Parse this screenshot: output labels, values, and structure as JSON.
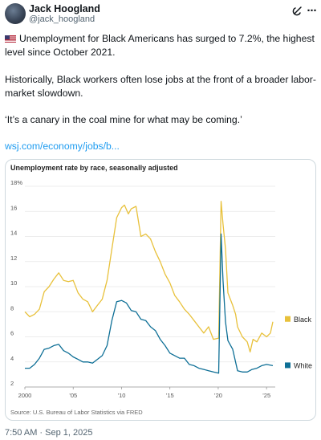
{
  "author": {
    "name": "Jack Hoogland",
    "handle": "@jack_hoogland"
  },
  "tweet": {
    "flag_icon": "us-flag-icon",
    "paragraph1": "Unemployment for Black Americans has surged to 7.2%, the highest level since October 2021.",
    "paragraph2": "Historically, Black workers often lose jobs at the front of a broader labor-market slowdown.",
    "paragraph3": "‘It’s a canary in the coal mine for what may be coming.’",
    "link": "wsj.com/economy/jobs/b..."
  },
  "timestamp": "7:50 AM · Sep 1, 2025",
  "colors": {
    "black_series": "#e8c13b",
    "white_series": "#0e6f96",
    "link": "#1d9bf0"
  },
  "chart_data": {
    "type": "line",
    "title": "Unemployment rate by race, seasonally adjusted",
    "source": "Source: U.S. Bureau of Labor Statistics via FRED",
    "x_ticks": [
      "2000",
      "’05",
      "’10",
      "’15",
      "’20",
      "’25"
    ],
    "x_tick_values": [
      2000,
      2005,
      2010,
      2015,
      2020,
      2025
    ],
    "y_ticks": [
      "18%",
      "16",
      "14",
      "12",
      "10",
      "8",
      "6",
      "4",
      "2"
    ],
    "y_tick_values": [
      18,
      16,
      14,
      12,
      10,
      8,
      6,
      4,
      2
    ],
    "xlim": [
      2000,
      2025.9
    ],
    "ylim": [
      2,
      18
    ],
    "grid": "horizontal",
    "legend": "right",
    "series": [
      {
        "name": "Black",
        "color": "#e8c13b",
        "points": [
          [
            2000,
            8.0
          ],
          [
            2000.5,
            7.6
          ],
          [
            2001,
            7.8
          ],
          [
            2001.5,
            8.2
          ],
          [
            2002,
            9.6
          ],
          [
            2002.5,
            10.0
          ],
          [
            2003,
            10.6
          ],
          [
            2003.5,
            11.1
          ],
          [
            2004,
            10.5
          ],
          [
            2004.5,
            10.4
          ],
          [
            2005,
            10.5
          ],
          [
            2005.5,
            9.5
          ],
          [
            2006,
            9.0
          ],
          [
            2006.5,
            8.8
          ],
          [
            2007,
            8.0
          ],
          [
            2007.5,
            8.5
          ],
          [
            2008,
            9.0
          ],
          [
            2008.5,
            10.5
          ],
          [
            2009,
            13.0
          ],
          [
            2009.5,
            15.5
          ],
          [
            2010,
            16.3
          ],
          [
            2010.3,
            16.5
          ],
          [
            2010.7,
            15.8
          ],
          [
            2011,
            16.2
          ],
          [
            2011.5,
            16.4
          ],
          [
            2012,
            14.0
          ],
          [
            2012.5,
            14.2
          ],
          [
            2013,
            13.8
          ],
          [
            2013.5,
            12.8
          ],
          [
            2014,
            12.0
          ],
          [
            2014.5,
            11.0
          ],
          [
            2015,
            10.3
          ],
          [
            2015.5,
            9.3
          ],
          [
            2016,
            8.8
          ],
          [
            2016.5,
            8.2
          ],
          [
            2017,
            7.8
          ],
          [
            2017.5,
            7.3
          ],
          [
            2018,
            6.8
          ],
          [
            2018.5,
            6.3
          ],
          [
            2019,
            6.8
          ],
          [
            2019.5,
            5.8
          ],
          [
            2020.05,
            5.9
          ],
          [
            2020.3,
            16.8
          ],
          [
            2020.5,
            15.0
          ],
          [
            2020.75,
            13.0
          ],
          [
            2021,
            9.5
          ],
          [
            2021.5,
            8.5
          ],
          [
            2021.8,
            7.8
          ],
          [
            2022,
            6.8
          ],
          [
            2022.5,
            6.0
          ],
          [
            2023,
            5.6
          ],
          [
            2023.3,
            4.8
          ],
          [
            2023.6,
            5.8
          ],
          [
            2024,
            5.6
          ],
          [
            2024.5,
            6.3
          ],
          [
            2025,
            6.0
          ],
          [
            2025.4,
            6.3
          ],
          [
            2025.65,
            7.2
          ]
        ]
      },
      {
        "name": "White",
        "color": "#0e6f96",
        "points": [
          [
            2000,
            3.5
          ],
          [
            2000.5,
            3.5
          ],
          [
            2001,
            3.8
          ],
          [
            2001.5,
            4.3
          ],
          [
            2002,
            5.0
          ],
          [
            2002.5,
            5.1
          ],
          [
            2003,
            5.3
          ],
          [
            2003.5,
            5.4
          ],
          [
            2004,
            4.9
          ],
          [
            2004.5,
            4.7
          ],
          [
            2005,
            4.4
          ],
          [
            2005.5,
            4.2
          ],
          [
            2006,
            4.0
          ],
          [
            2006.5,
            4.0
          ],
          [
            2007,
            3.9
          ],
          [
            2007.5,
            4.2
          ],
          [
            2008,
            4.5
          ],
          [
            2008.5,
            5.3
          ],
          [
            2009,
            7.3
          ],
          [
            2009.5,
            8.8
          ],
          [
            2010,
            8.9
          ],
          [
            2010.5,
            8.7
          ],
          [
            2011,
            8.1
          ],
          [
            2011.5,
            8.0
          ],
          [
            2012,
            7.4
          ],
          [
            2012.5,
            7.3
          ],
          [
            2013,
            6.8
          ],
          [
            2013.5,
            6.5
          ],
          [
            2014,
            5.8
          ],
          [
            2014.5,
            5.3
          ],
          [
            2015,
            4.7
          ],
          [
            2015.5,
            4.5
          ],
          [
            2016,
            4.3
          ],
          [
            2016.5,
            4.3
          ],
          [
            2017,
            3.8
          ],
          [
            2017.5,
            3.7
          ],
          [
            2018,
            3.5
          ],
          [
            2018.5,
            3.4
          ],
          [
            2019,
            3.3
          ],
          [
            2019.5,
            3.2
          ],
          [
            2020.05,
            3.1
          ],
          [
            2020.3,
            14.2
          ],
          [
            2020.5,
            10.5
          ],
          [
            2020.75,
            7.2
          ],
          [
            2021,
            5.7
          ],
          [
            2021.5,
            5.0
          ],
          [
            2022,
            3.3
          ],
          [
            2022.5,
            3.2
          ],
          [
            2023,
            3.2
          ],
          [
            2023.5,
            3.4
          ],
          [
            2024,
            3.5
          ],
          [
            2024.5,
            3.7
          ],
          [
            2025,
            3.8
          ],
          [
            2025.65,
            3.7
          ]
        ]
      }
    ]
  }
}
